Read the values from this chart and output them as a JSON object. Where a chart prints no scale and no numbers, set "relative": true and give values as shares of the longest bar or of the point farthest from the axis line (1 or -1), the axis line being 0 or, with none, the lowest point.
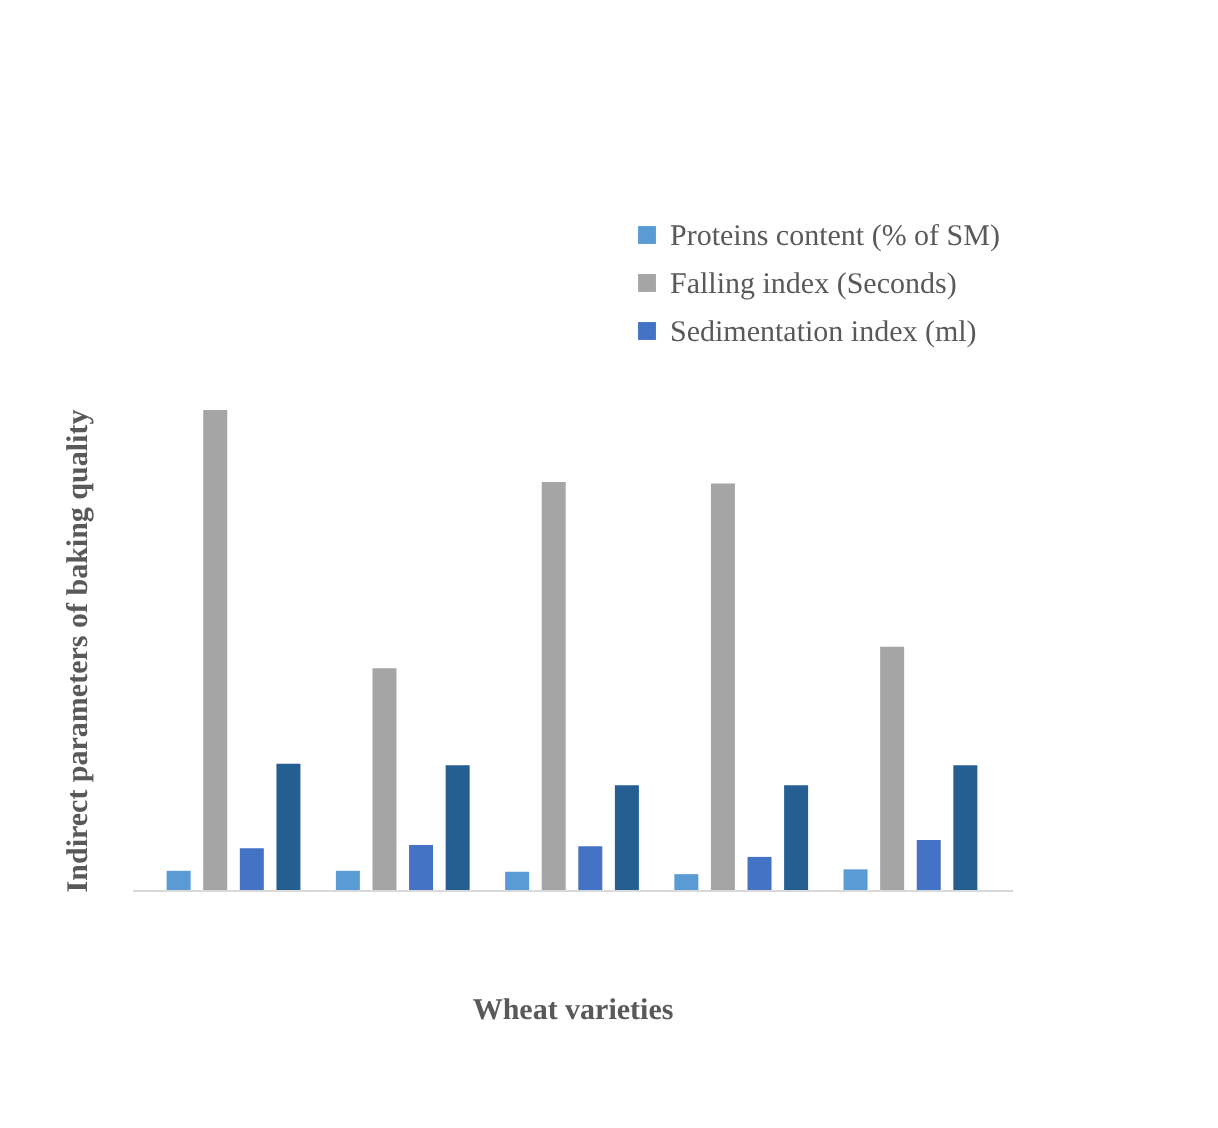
{
  "chart_data": {
    "type": "bar",
    "relative": true,
    "xlabel": "Wheat varieties",
    "ylabel": "Indirect parameters of baking quality",
    "legend": "top right",
    "categories": [
      null,
      null,
      null,
      null,
      null
    ],
    "series": [
      {
        "name": "Proteins content (% of SM)",
        "color": "#5b9bd5",
        "values": [
          0.04,
          0.04,
          0.038,
          0.033,
          0.043
        ]
      },
      {
        "name": "Falling index (Seconds)",
        "color": "#a5a5a5",
        "values": [
          1,
          0.462,
          0.85,
          0.847,
          0.507
        ]
      },
      {
        "name": "Sedimentation index (ml)",
        "color": "#4472c4",
        "values": [
          0.087,
          0.094,
          0.091,
          0.069,
          0.104
        ]
      },
      {
        "color": "#255e91",
        "values": [
          0.263,
          0.26,
          0.218,
          0.218,
          0.26
        ]
      }
    ]
  }
}
